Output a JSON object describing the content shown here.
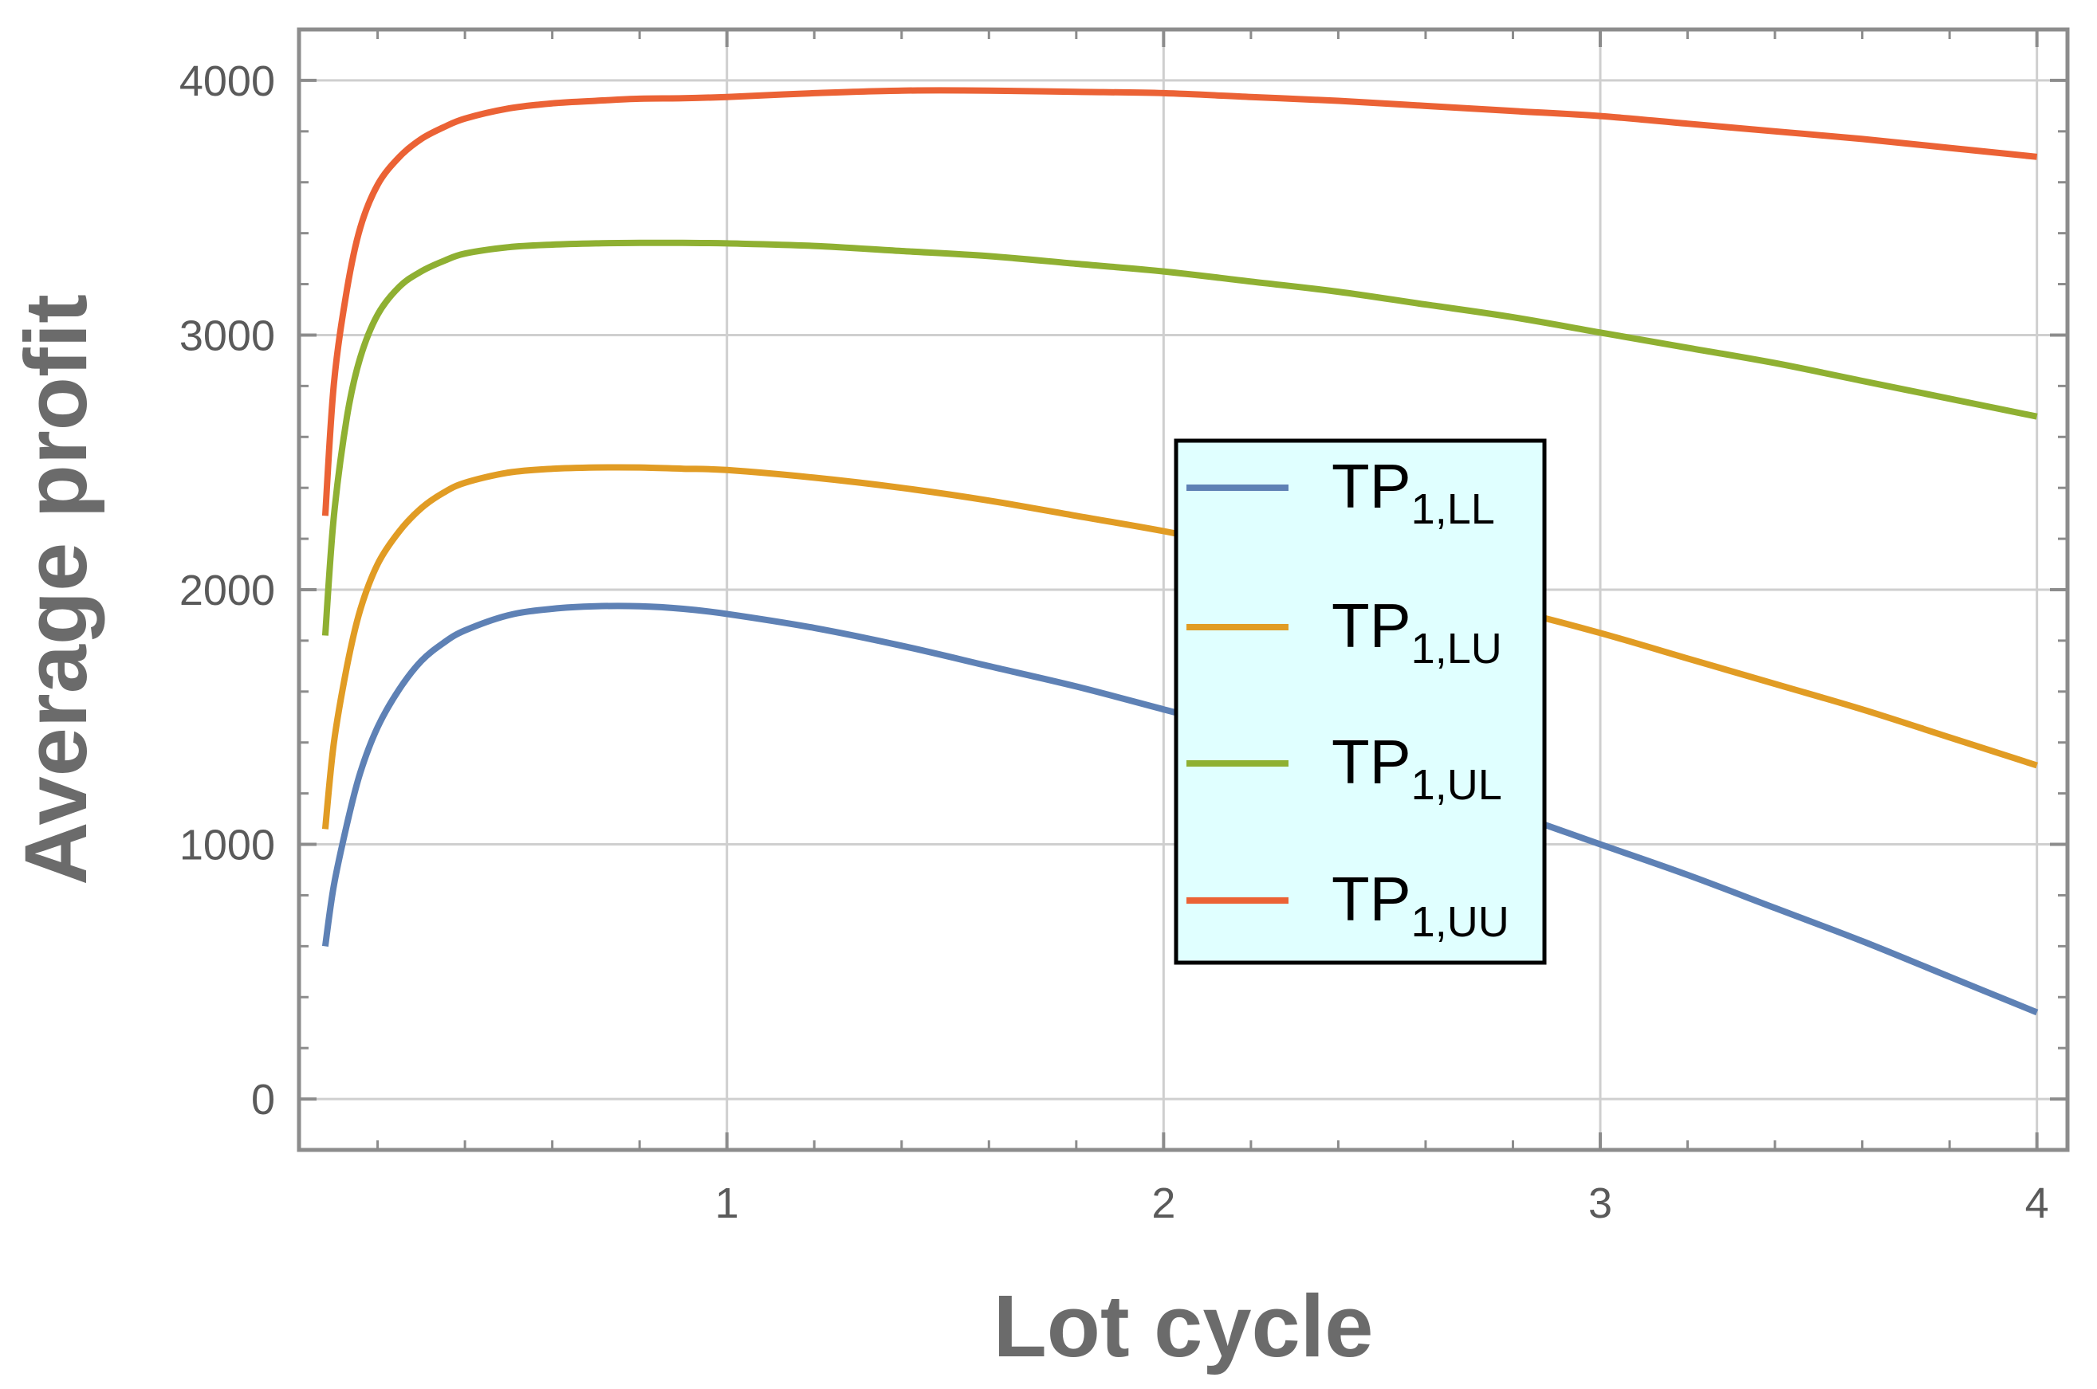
{
  "chart_data": {
    "type": "line",
    "title": "",
    "xlabel": "Lot cycle",
    "ylabel": "Average profit",
    "xlim": [
      0.02,
      4.07
    ],
    "ylim": [
      -200,
      4200
    ],
    "grid": true,
    "x_ticks": [
      1,
      2,
      3,
      4
    ],
    "y_ticks": [
      0,
      1000,
      2000,
      3000,
      4000
    ],
    "legend_position": "center-right",
    "legend_background": "#e0ffff",
    "series": [
      {
        "name": "TP1,LL",
        "label_main": "TP",
        "label_sub": "1,LL",
        "color": "#5e81b5",
        "x": [
          0.08,
          0.1,
          0.13,
          0.16,
          0.2,
          0.25,
          0.3,
          0.35,
          0.4,
          0.5,
          0.6,
          0.7,
          0.8,
          0.9,
          1.0,
          1.2,
          1.4,
          1.6,
          1.8,
          2.0,
          2.2,
          2.4,
          2.6,
          2.8,
          3.0,
          3.2,
          3.4,
          3.6,
          3.8,
          4.0
        ],
        "y": [
          600,
          840,
          1080,
          1280,
          1460,
          1610,
          1720,
          1790,
          1840,
          1900,
          1925,
          1935,
          1935,
          1925,
          1905,
          1850,
          1780,
          1700,
          1620,
          1530,
          1440,
          1340,
          1230,
          1120,
          1000,
          880,
          750,
          620,
          480,
          340
        ]
      },
      {
        "name": "TP1,LU",
        "label_main": "TP",
        "label_sub": "1,LU",
        "color": "#e19c24",
        "x": [
          0.08,
          0.1,
          0.13,
          0.16,
          0.2,
          0.25,
          0.3,
          0.35,
          0.4,
          0.5,
          0.6,
          0.7,
          0.8,
          0.9,
          1.0,
          1.2,
          1.4,
          1.6,
          1.8,
          2.0,
          2.2,
          2.4,
          2.6,
          2.8,
          3.0,
          3.2,
          3.4,
          3.6,
          3.8,
          4.0
        ],
        "y": [
          1060,
          1400,
          1700,
          1920,
          2100,
          2230,
          2320,
          2380,
          2420,
          2460,
          2475,
          2480,
          2480,
          2475,
          2470,
          2440,
          2400,
          2350,
          2290,
          2230,
          2160,
          2080,
          2000,
          1920,
          1830,
          1730,
          1630,
          1530,
          1420,
          1310
        ]
      },
      {
        "name": "TP1,UL",
        "label_main": "TP",
        "label_sub": "1,UL",
        "color": "#8fb032",
        "x": [
          0.08,
          0.1,
          0.13,
          0.16,
          0.2,
          0.25,
          0.3,
          0.35,
          0.4,
          0.5,
          0.6,
          0.7,
          0.8,
          0.9,
          1.0,
          1.2,
          1.4,
          1.6,
          1.8,
          2.0,
          2.2,
          2.4,
          2.6,
          2.8,
          3.0,
          3.2,
          3.4,
          3.6,
          3.8,
          4.0
        ],
        "y": [
          1820,
          2290,
          2680,
          2910,
          3080,
          3190,
          3250,
          3290,
          3320,
          3345,
          3355,
          3360,
          3362,
          3362,
          3360,
          3350,
          3330,
          3310,
          3280,
          3250,
          3210,
          3170,
          3120,
          3070,
          3010,
          2950,
          2890,
          2820,
          2750,
          2680
        ]
      },
      {
        "name": "TP1,UU",
        "label_main": "TP",
        "label_sub": "1,UU",
        "color": "#eb6235",
        "x": [
          0.08,
          0.1,
          0.13,
          0.16,
          0.2,
          0.25,
          0.3,
          0.35,
          0.4,
          0.5,
          0.6,
          0.7,
          0.8,
          0.9,
          1.0,
          1.2,
          1.4,
          1.6,
          1.8,
          2.0,
          2.2,
          2.4,
          2.6,
          2.8,
          3.0,
          3.2,
          3.4,
          3.6,
          3.8,
          4.0
        ],
        "y": [
          2290,
          2810,
          3180,
          3420,
          3590,
          3700,
          3770,
          3815,
          3850,
          3890,
          3910,
          3920,
          3928,
          3930,
          3935,
          3950,
          3960,
          3960,
          3955,
          3950,
          3935,
          3920,
          3900,
          3880,
          3860,
          3830,
          3800,
          3770,
          3735,
          3700
        ]
      }
    ]
  }
}
